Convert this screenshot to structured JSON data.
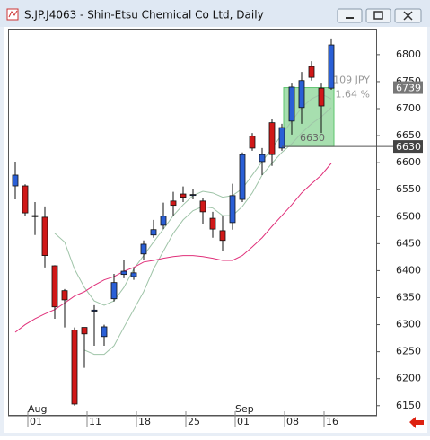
{
  "window": {
    "title": "S.JP.J4063 - Shin-Etsu Chemical Co Ltd, Daily"
  },
  "chart_data": {
    "type": "candlestick",
    "categories": [
      null,
      null,
      "01",
      null,
      null,
      null,
      null,
      null,
      "11",
      null,
      null,
      null,
      null,
      "18",
      null,
      null,
      null,
      null,
      "25",
      null,
      null,
      null,
      null,
      "01",
      null,
      null,
      null,
      null,
      "08",
      null,
      null,
      null,
      "16"
    ],
    "month_categories": [
      null,
      null,
      "Aug",
      null,
      null,
      null,
      null,
      null,
      null,
      null,
      null,
      null,
      null,
      null,
      null,
      null,
      null,
      null,
      null,
      null,
      null,
      null,
      null,
      "Sep",
      null,
      null,
      null,
      null,
      null,
      null,
      null,
      null,
      null
    ],
    "open": [
      6557,
      6557,
      6500,
      6499,
      6409,
      6363,
      6290,
      6295,
      6325,
      6278,
      6348,
      6393,
      6389,
      6431,
      6466,
      6484,
      6529,
      6542,
      6541,
      6529,
      6497,
      6474,
      6489,
      6532,
      6649,
      6602,
      6674,
      6627,
      6677,
      6702,
      6778,
      6738,
      6738
    ],
    "high": [
      6602,
      6560,
      6527,
      6519,
      6410,
      6366,
      6295,
      6295,
      6336,
      6300,
      6394,
      6419,
      6406,
      6456,
      6494,
      6526,
      6546,
      6556,
      6552,
      6534,
      6509,
      6502,
      6561,
      6619,
      6655,
      6627,
      6680,
      6672,
      6748,
      6768,
      6788,
      6748,
      6830
    ],
    "low": [
      6532,
      6502,
      6466,
      6406,
      6311,
      6295,
      6150,
      6220,
      6261,
      6261,
      6343,
      6386,
      6383,
      6419,
      6461,
      6477,
      6502,
      6527,
      6532,
      6486,
      6461,
      6436,
      6476,
      6527,
      6622,
      6577,
      6594,
      6622,
      6652,
      6672,
      6752,
      6655,
      6735
    ],
    "close": [
      6577,
      6507,
      6502,
      6428,
      6333,
      6346,
      6153,
      6283,
      6327,
      6296,
      6378,
      6399,
      6396,
      6449,
      6476,
      6501,
      6521,
      6536,
      6541,
      6509,
      6477,
      6456,
      6539,
      6615,
      6627,
      6615,
      6615,
      6665,
      6740,
      6752,
      6758,
      6705,
      6818
    ],
    "up_color": "#2a5fd6",
    "down_color": "#d01818",
    "lines": [
      {
        "color": "#9fc4a8",
        "values": [
          null,
          null,
          null,
          null,
          6469,
          6453,
          6403,
          6369,
          6344,
          6336,
          6344,
          6369,
          6403,
          6428,
          6453,
          6477,
          6502,
          6522,
          6539,
          6547,
          6544,
          6536,
          6539,
          6552,
          6577,
          6602,
          6627,
          6652,
          6677,
          6702,
          6718,
          6727,
          6718
        ]
      },
      {
        "color": "#9fc4a8",
        "values": [
          null,
          null,
          null,
          null,
          null,
          null,
          null,
          6253,
          6245,
          6245,
          6261,
          6295,
          6328,
          6361,
          6403,
          6436,
          6469,
          6494,
          6511,
          6519,
          6516,
          6502,
          6502,
          6519,
          6544,
          6577,
          6599,
          6619,
          6635,
          6655,
          6672,
          6685,
          6702
        ]
      },
      {
        "color": "#e0307a",
        "values": [
          6286,
          6300,
          6311,
          6320,
          6328,
          6340,
          6353,
          6361,
          6373,
          6383,
          6389,
          6399,
          6406,
          6416,
          6419,
          6423,
          6426,
          6428,
          6428,
          6426,
          6423,
          6419,
          6419,
          6428,
          6444,
          6461,
          6482,
          6502,
          6522,
          6544,
          6561,
          6577,
          6599
        ]
      }
    ],
    "ylim": [
      6133,
      6848
    ],
    "yticks": [
      6150,
      6200,
      6250,
      6300,
      6350,
      6400,
      6450,
      6500,
      6550,
      6600,
      6650,
      6700,
      6750,
      6800
    ],
    "grid": false,
    "price_markers": [
      6739,
      6630
    ],
    "range_box": {
      "high": 6739,
      "low": 6630,
      "change": "109 JPY",
      "percent": "1.64 %",
      "color": "#5ec46e"
    }
  }
}
